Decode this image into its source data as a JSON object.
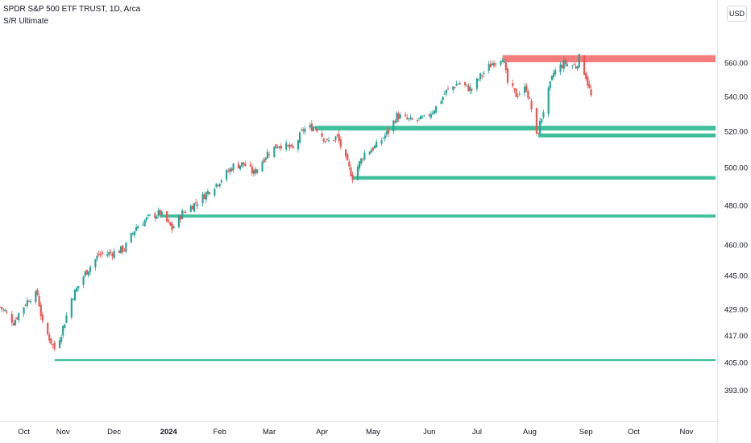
{
  "header": {
    "symbol_title": "SPDR S&P 500 ETF TRUST, 1D, Arca",
    "indicator_title": "S/R Ultimate",
    "currency": "USD"
  },
  "chart_data": {
    "type": "candlestick",
    "title": "SPDR S&P 500 ETF TRUST, 1D, Arca",
    "indicator": "S/R Ultimate",
    "currency": "USD",
    "y_scale": "log",
    "ylim": [
      386,
      580
    ],
    "xlim": [
      "2023-09-25",
      "2024-11-19"
    ],
    "y_ticks": [
      {
        "value": 560,
        "label": "560.00"
      },
      {
        "value": 540,
        "label": "540.00"
      },
      {
        "value": 520,
        "label": "520.00"
      },
      {
        "value": 500,
        "label": "500.00"
      },
      {
        "value": 480,
        "label": "480.00"
      },
      {
        "value": 460,
        "label": "460.00"
      },
      {
        "value": 445,
        "label": "445.00"
      },
      {
        "value": 429,
        "label": "429.00"
      },
      {
        "value": 417,
        "label": "417.00"
      },
      {
        "value": 405,
        "label": "405.00"
      },
      {
        "value": 393,
        "label": "393.00"
      }
    ],
    "x_ticks": [
      {
        "date": "2023-10-09",
        "label": "Oct",
        "bold": false
      },
      {
        "date": "2023-11-01",
        "label": "Nov",
        "bold": false
      },
      {
        "date": "2023-12-01",
        "label": "Dec",
        "bold": false
      },
      {
        "date": "2024-01-02",
        "label": "2024",
        "bold": true
      },
      {
        "date": "2024-02-01",
        "label": "Feb",
        "bold": false
      },
      {
        "date": "2024-03-01",
        "label": "Mar",
        "bold": false
      },
      {
        "date": "2024-04-01",
        "label": "Apr",
        "bold": false
      },
      {
        "date": "2024-05-01",
        "label": "May",
        "bold": false
      },
      {
        "date": "2024-06-03",
        "label": "Jun",
        "bold": false
      },
      {
        "date": "2024-07-01",
        "label": "Jul",
        "bold": false
      },
      {
        "date": "2024-08-01",
        "label": "Aug",
        "bold": false
      },
      {
        "date": "2024-09-03",
        "label": "Sep",
        "bold": false
      },
      {
        "date": "2024-10-01",
        "label": "Oct",
        "bold": false
      },
      {
        "date": "2024-11-01",
        "label": "Nov",
        "bold": false
      }
    ],
    "colors": {
      "up": "#26a69a",
      "down": "#ef5350",
      "support": "#3fbf9a",
      "resistance": "#f47c7c",
      "axis_text": "#131722"
    },
    "price_path": [
      [
        "2023-09-25",
        430
      ],
      [
        "2023-09-28",
        428
      ],
      [
        "2023-10-03",
        423
      ],
      [
        "2023-10-06",
        427
      ],
      [
        "2023-10-12",
        434
      ],
      [
        "2023-10-17",
        436
      ],
      [
        "2023-10-20",
        422
      ],
      [
        "2023-10-27",
        411
      ],
      [
        "2023-10-31",
        418
      ],
      [
        "2023-11-06",
        434
      ],
      [
        "2023-11-14",
        446
      ],
      [
        "2023-11-22",
        455
      ],
      [
        "2023-11-30",
        456
      ],
      [
        "2023-12-07",
        458
      ],
      [
        "2023-12-14",
        469
      ],
      [
        "2023-12-22",
        474
      ],
      [
        "2023-12-28",
        476
      ],
      [
        "2024-01-04",
        468
      ],
      [
        "2024-01-10",
        476
      ],
      [
        "2024-01-19",
        482
      ],
      [
        "2024-01-26",
        488
      ],
      [
        "2024-02-02",
        494
      ],
      [
        "2024-02-09",
        501
      ],
      [
        "2024-02-15",
        502
      ],
      [
        "2024-02-21",
        497
      ],
      [
        "2024-02-29",
        508
      ],
      [
        "2024-03-07",
        513
      ],
      [
        "2024-03-15",
        510
      ],
      [
        "2024-03-21",
        521
      ],
      [
        "2024-03-28",
        523
      ],
      [
        "2024-04-04",
        514
      ],
      [
        "2024-04-10",
        517
      ],
      [
        "2024-04-15",
        504
      ],
      [
        "2024-04-19",
        495
      ],
      [
        "2024-04-26",
        508
      ],
      [
        "2024-05-03",
        512
      ],
      [
        "2024-05-10",
        520
      ],
      [
        "2024-05-15",
        529
      ],
      [
        "2024-05-23",
        526
      ],
      [
        "2024-05-31",
        527
      ],
      [
        "2024-06-07",
        534
      ],
      [
        "2024-06-13",
        543
      ],
      [
        "2024-06-20",
        548
      ],
      [
        "2024-06-28",
        544
      ],
      [
        "2024-07-03",
        552
      ],
      [
        "2024-07-10",
        560
      ],
      [
        "2024-07-16",
        564
      ],
      [
        "2024-07-19",
        548
      ],
      [
        "2024-07-24",
        541
      ],
      [
        "2024-07-30",
        545
      ],
      [
        "2024-08-02",
        533
      ],
      [
        "2024-08-05",
        517
      ],
      [
        "2024-08-09",
        532
      ],
      [
        "2024-08-15",
        554
      ],
      [
        "2024-08-21",
        560
      ],
      [
        "2024-08-28",
        558
      ],
      [
        "2024-08-30",
        563
      ],
      [
        "2024-09-03",
        552
      ],
      [
        "2024-09-06",
        540
      ]
    ],
    "levels": [
      {
        "kind": "resistance",
        "price": 562.3,
        "low": 560.5,
        "high": 564.8,
        "start": "2024-07-16"
      },
      {
        "kind": "support",
        "price": 521.9,
        "low": 520.6,
        "high": 523.2,
        "start": "2024-03-28"
      },
      {
        "kind": "support",
        "price": 517.8,
        "low": 516.7,
        "high": 518.9,
        "start": "2024-08-06"
      },
      {
        "kind": "support",
        "price": 494.5,
        "low": 493.6,
        "high": 495.5,
        "start": "2024-04-19"
      },
      {
        "kind": "support",
        "price": 474.5,
        "low": 473.7,
        "high": 475.3,
        "start": "2023-12-28"
      },
      {
        "kind": "support",
        "price": 406.0,
        "low": 405.6,
        "high": 406.4,
        "start": "2023-10-27"
      }
    ]
  }
}
